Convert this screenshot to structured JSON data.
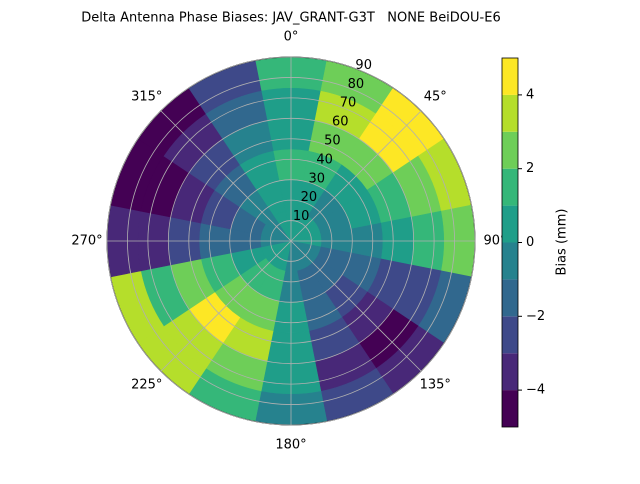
{
  "chart_data": {
    "type": "polar_contour",
    "title": "Delta Antenna Phase Biases: JAV_GRANT-G3T   NONE BeiDOU-E6",
    "colorbar_label": "Bias (mm)",
    "rlim": [
      0,
      90
    ],
    "rticks": [
      10,
      20,
      30,
      40,
      50,
      60,
      70,
      80,
      90
    ],
    "thetaticks": [
      {
        "value": 0,
        "label": "0°"
      },
      {
        "value": 45,
        "label": "45°"
      },
      {
        "value": 90,
        "label": "90°"
      },
      {
        "value": 135,
        "label": "135°"
      },
      {
        "value": 180,
        "label": "180°"
      },
      {
        "value": 225,
        "label": "225°"
      },
      {
        "value": 270,
        "label": "270°"
      },
      {
        "value": 315,
        "label": "315°"
      }
    ],
    "levels": [
      -5,
      -4,
      -3,
      -2,
      -1,
      0,
      1,
      2,
      3,
      4,
      5
    ],
    "colors": [
      "#440154",
      "#482878",
      "#3e4989",
      "#31688e",
      "#26828e",
      "#1f9e89",
      "#35b779",
      "#6ece58",
      "#b5de2b",
      "#fde725"
    ],
    "colorbar_ticks": [
      {
        "value": -4,
        "label": "−4"
      },
      {
        "value": -2,
        "label": "−2"
      },
      0,
      2,
      4
    ],
    "grid": true,
    "values": [
      [
        0.5,
        0.5,
        1.5,
        0.5,
        0.5,
        1.5
      ],
      [
        0.5,
        0.5,
        1.5,
        2.5,
        3.5,
        2.5
      ],
      [
        0.5,
        -0.5,
        0.5,
        2.5,
        4.5,
        4.5
      ],
      [
        0.5,
        -0.5,
        0.5,
        1.5,
        2.5,
        3.5
      ],
      [
        0.5,
        -0.5,
        -0.5,
        0.5,
        1.5,
        2.5
      ],
      [
        -0.5,
        -1.5,
        -1.5,
        -2.5,
        -2.5,
        -1.5
      ],
      [
        -0.5,
        -1.5,
        -2.5,
        -3.5,
        -4.5,
        -3.5
      ],
      [
        -0.5,
        -1.5,
        -1.5,
        -2.5,
        -3.5,
        -2.5
      ],
      [
        -0.5,
        -0.5,
        0.5,
        0.5,
        0.5,
        -0.5
      ],
      [
        0.5,
        1.5,
        2.5,
        3.5,
        2.5,
        1.5
      ],
      [
        0.5,
        1.5,
        2.5,
        4.5,
        3.5,
        3.5
      ],
      [
        0.5,
        0.5,
        1.5,
        2.5,
        1.5,
        3.5
      ],
      [
        -0.5,
        -1.5,
        -1.5,
        -2.5,
        -3.5,
        -3.5
      ],
      [
        -0.5,
        -1.5,
        -2.5,
        -3.5,
        -4.5,
        -4.5
      ],
      [
        -0.5,
        -0.5,
        -1.5,
        -2.5,
        -3.5,
        -4.5
      ],
      [
        0.5,
        0.5,
        0.5,
        -0.5,
        -1.5,
        -2.5
      ]
    ]
  }
}
